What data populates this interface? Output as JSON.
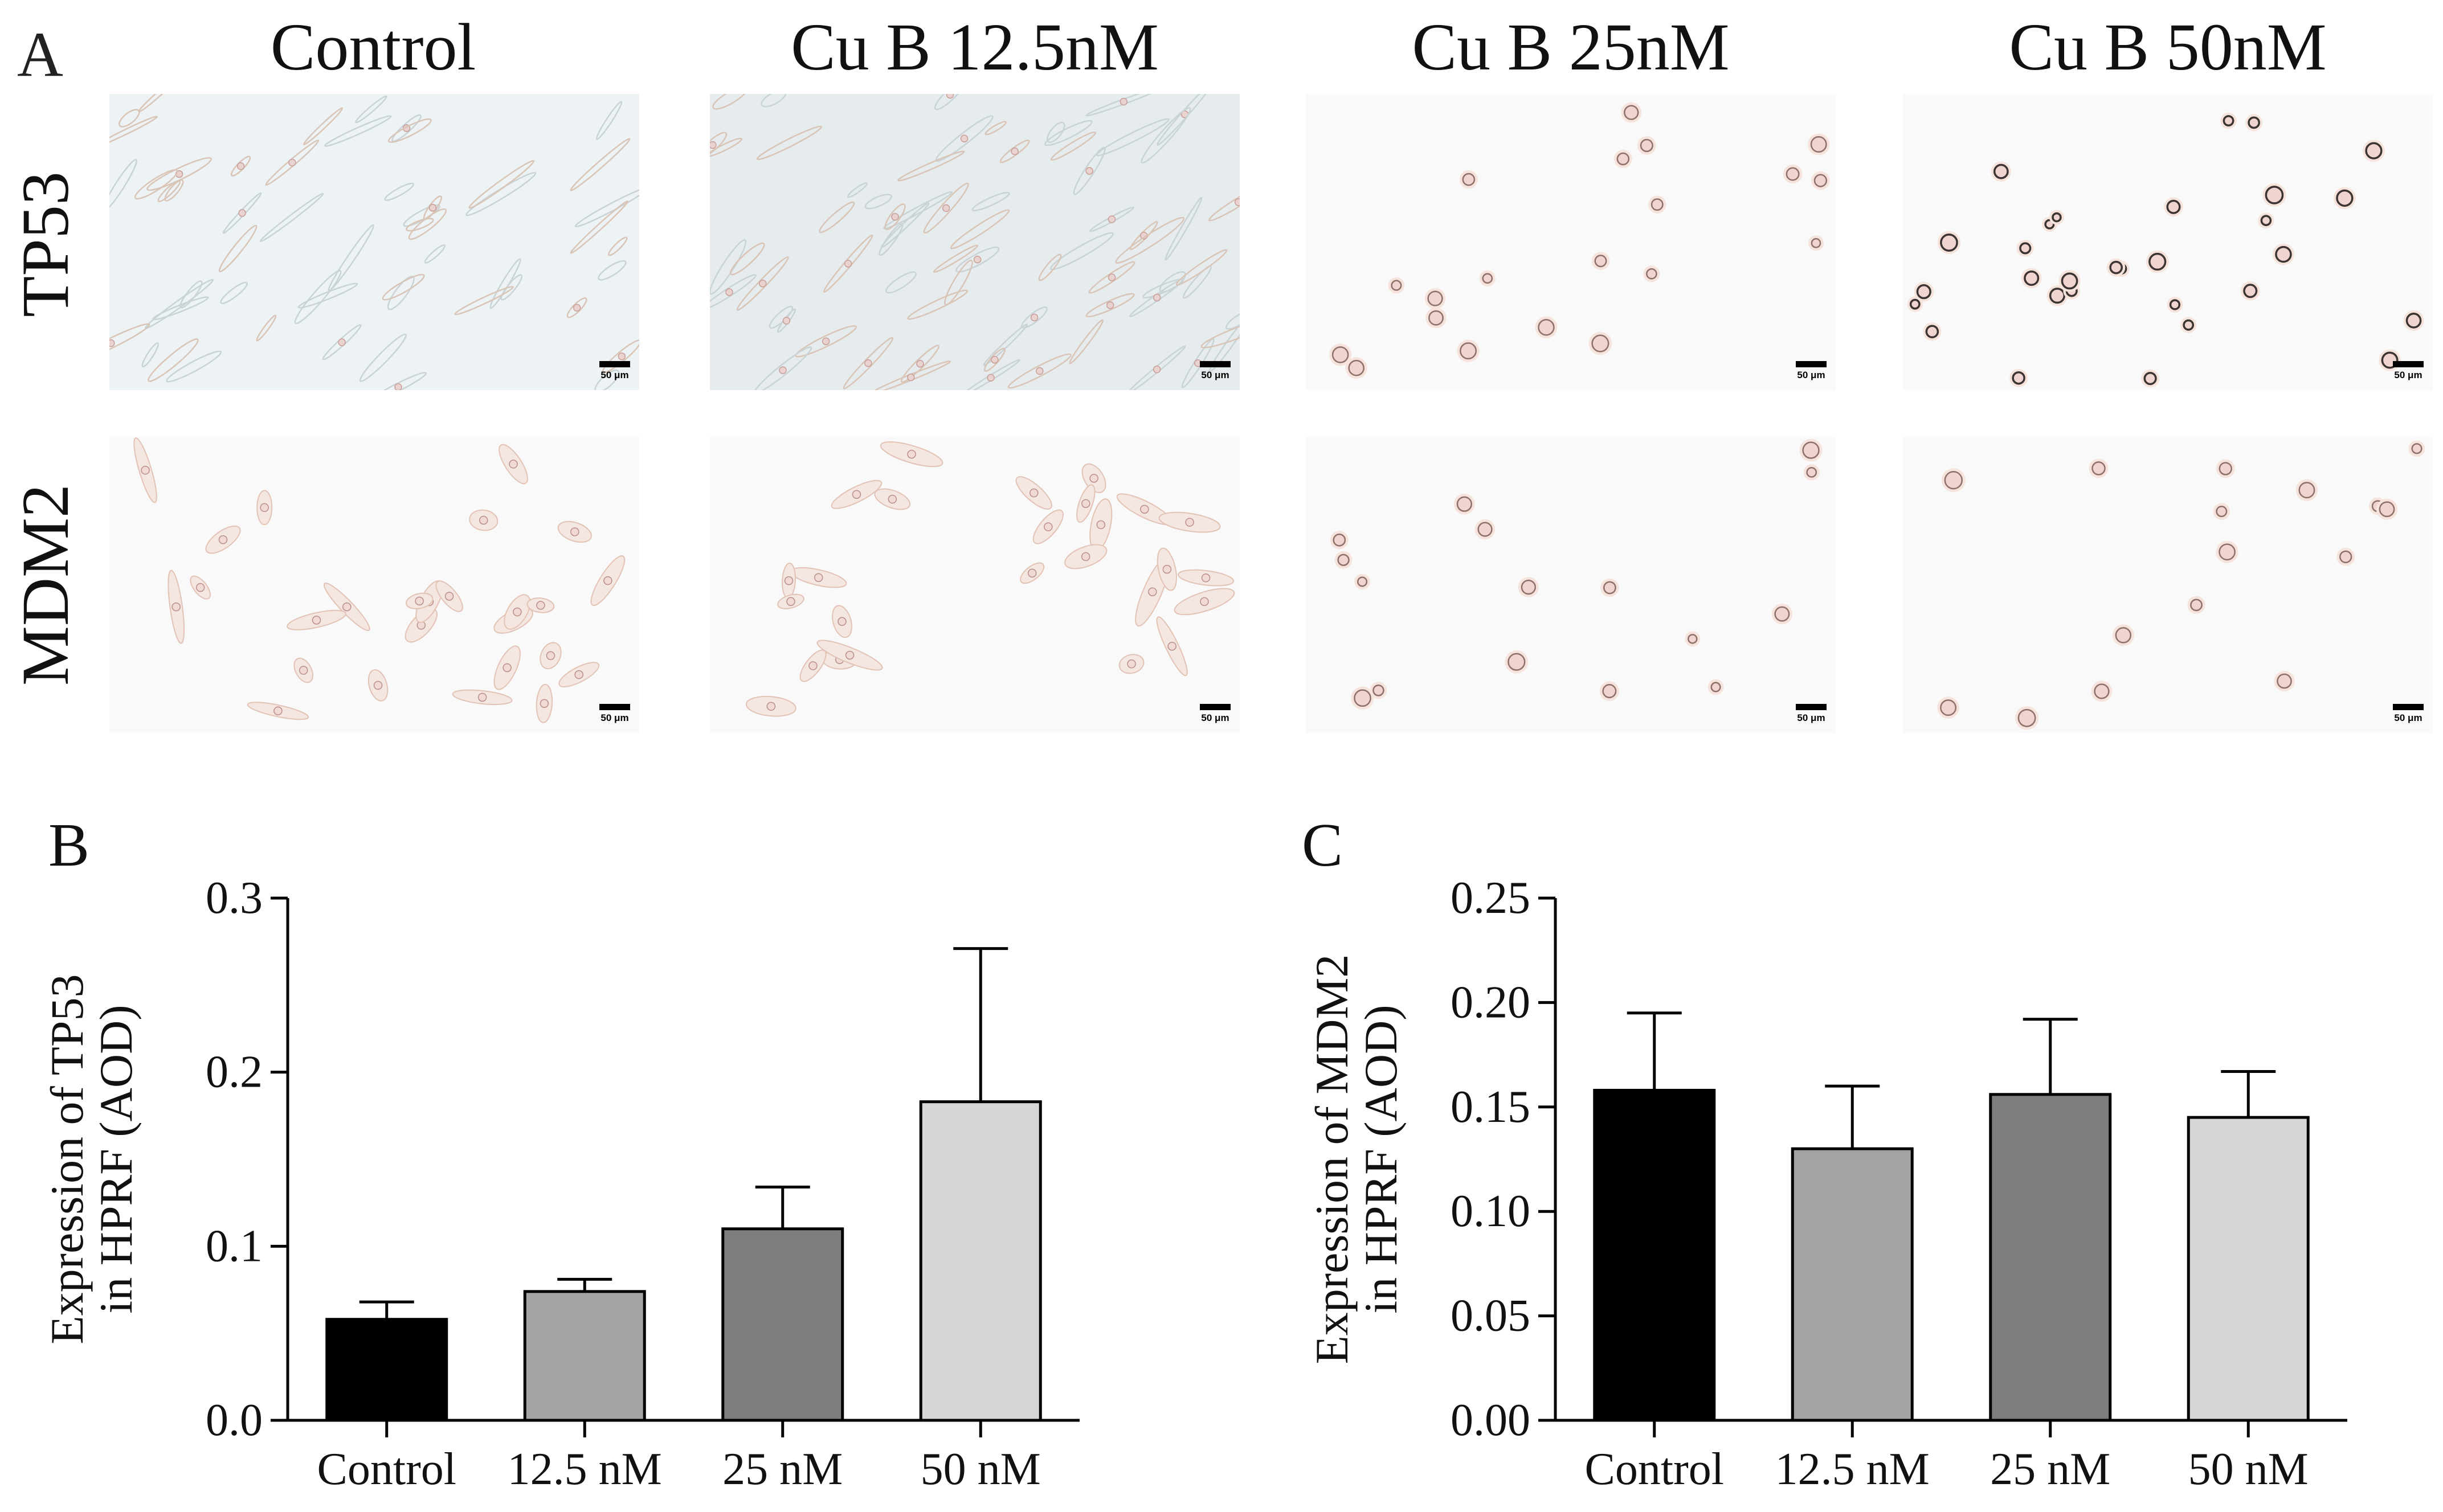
{
  "panel_a": {
    "letter": "A",
    "columns": [
      "Control",
      "Cu B 12.5nM",
      "Cu B 25nM",
      "Cu B 50nM"
    ],
    "rows": [
      "TP53",
      "MDM2"
    ],
    "scale_label": "50 μm"
  },
  "chart_data": [
    {
      "id": "B",
      "type": "bar",
      "panel_letter": "B",
      "title": "",
      "categories": [
        "Control",
        "12.5 nM",
        "25 nM",
        "50 nM"
      ],
      "values": [
        0.058,
        0.074,
        0.11,
        0.183
      ],
      "error_upper": [
        0.068,
        0.081,
        0.134,
        0.271
      ],
      "ylabel_lines": [
        "Expression of TP53",
        "in HPRF (AOD)"
      ],
      "xlabel": "",
      "ylim": [
        0,
        0.3
      ],
      "yticks": [
        "0.0",
        "0.1",
        "0.2",
        "0.3"
      ],
      "bar_colors": [
        "#000000",
        "#a3a3a6",
        "#7d7d7d",
        "#d6d6d6"
      ]
    },
    {
      "id": "C",
      "type": "bar",
      "panel_letter": "C",
      "title": "",
      "categories": [
        "Control",
        "12.5 nM",
        "25 nM",
        "50 nM"
      ],
      "values": [
        0.158,
        0.13,
        0.156,
        0.145
      ],
      "error_upper": [
        0.195,
        0.16,
        0.192,
        0.167
      ],
      "ylabel_lines": [
        "Expression of MDM2",
        "in HPRF (AOD)"
      ],
      "xlabel": "",
      "ylim": [
        0,
        0.25
      ],
      "yticks": [
        "0.00",
        "0.05",
        "0.10",
        "0.15",
        "0.20",
        "0.25"
      ],
      "bar_colors": [
        "#000000",
        "#a3a3a6",
        "#7d7d7d",
        "#d6d6d6"
      ]
    }
  ]
}
